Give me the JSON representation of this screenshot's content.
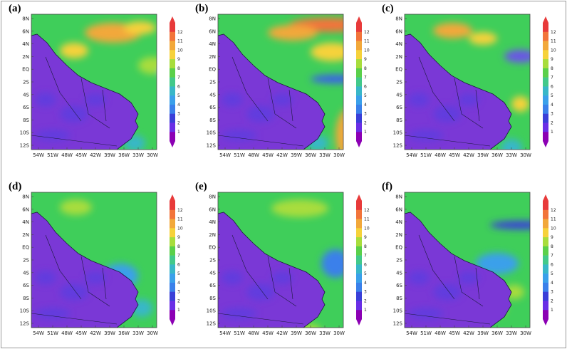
{
  "panels": [
    {
      "label": "(a)",
      "warm": [
        [
          95,
          12,
          80,
          28,
          "#f2a83a"
        ],
        [
          150,
          10,
          45,
          18,
          "#f6d23a"
        ],
        [
          60,
          40,
          40,
          22,
          "#f6d23a"
        ],
        [
          170,
          60,
          40,
          24,
          "#a8dd3c"
        ]
      ],
      "cool": [
        [
          200,
          75,
          18,
          14,
          "#3aa0ea"
        ],
        [
          150,
          170,
          30,
          22,
          "#38b7c8"
        ]
      ]
    },
    {
      "label": "(b)",
      "warm": [
        [
          120,
          5,
          110,
          20,
          "#f2743a"
        ],
        [
          90,
          15,
          70,
          22,
          "#f2a83a"
        ],
        [
          185,
          130,
          45,
          80,
          "#f2a83a"
        ],
        [
          150,
          40,
          60,
          26,
          "#f6d23a"
        ]
      ],
      "cool": [
        [
          150,
          85,
          70,
          12,
          "#3a5fea"
        ],
        [
          145,
          170,
          30,
          22,
          "#38b7c8"
        ]
      ]
    },
    {
      "label": "(c)",
      "warm": [
        [
          60,
          12,
          55,
          22,
          "#f2a83a"
        ],
        [
          110,
          25,
          40,
          18,
          "#f6d23a"
        ],
        [
          170,
          115,
          25,
          22,
          "#f6d23a"
        ]
      ],
      "cool": [
        [
          160,
          50,
          45,
          18,
          "#6a55e6"
        ],
        [
          210,
          40,
          18,
          30,
          "#3a80ea"
        ],
        [
          155,
          175,
          30,
          25,
          "#38b7c8"
        ]
      ]
    },
    {
      "label": "(d)",
      "warm": [
        [
          60,
          10,
          45,
          22,
          "#a8dd3c"
        ]
      ],
      "cool": [
        [
          215,
          80,
          20,
          45,
          "#3a5fea"
        ],
        [
          120,
          100,
          50,
          35,
          "#3aa0ea"
        ],
        [
          160,
          150,
          30,
          25,
          "#38b7c8"
        ]
      ]
    },
    {
      "label": "(e)",
      "warm": [
        [
          95,
          10,
          80,
          25,
          "#a8dd3c"
        ]
      ],
      "cool": [
        [
          165,
          80,
          40,
          40,
          "#3a80ea"
        ],
        [
          110,
          130,
          50,
          40,
          "#3aa0ea"
        ],
        [
          130,
          185,
          35,
          20,
          "#a8dd3c"
        ]
      ]
    },
    {
      "label": "(f)",
      "warm": [
        [
          140,
          150,
          22,
          22,
          "#f6d23a"
        ],
        [
          160,
          130,
          28,
          20,
          "#a8dd3c"
        ]
      ],
      "cool": [
        [
          140,
          40,
          85,
          12,
          "#3a3fd8"
        ],
        [
          120,
          85,
          60,
          30,
          "#3aa0ea"
        ],
        [
          90,
          140,
          45,
          30,
          "#6a55e6"
        ]
      ]
    }
  ],
  "y_ticks": [
    "8N",
    "6N",
    "4N",
    "2N",
    "EQ",
    "2S",
    "4S",
    "6S",
    "8S",
    "10S",
    "12S"
  ],
  "x_ticks": [
    "54W",
    "51W",
    "48W",
    "45W",
    "42W",
    "39W",
    "36W",
    "33W",
    "30W"
  ],
  "colorbar": {
    "ticks": [
      "1",
      "2",
      "3",
      "4",
      "5",
      "6",
      "7",
      "8",
      "9",
      "10",
      "11",
      "12"
    ],
    "colors": [
      "#8c00b4",
      "#6a2ee6",
      "#3a3fd8",
      "#3a80ea",
      "#3aa0ea",
      "#38b7c8",
      "#42c98a",
      "#5ad04a",
      "#a8dd3c",
      "#f6d23a",
      "#f2a83a",
      "#f2743a",
      "#e83a3a"
    ]
  },
  "colors": {
    "land": "#7a38d6",
    "land_alt": "#5b3ee0",
    "ocean": "#3fce5a",
    "border": "#1a1a3a"
  }
}
